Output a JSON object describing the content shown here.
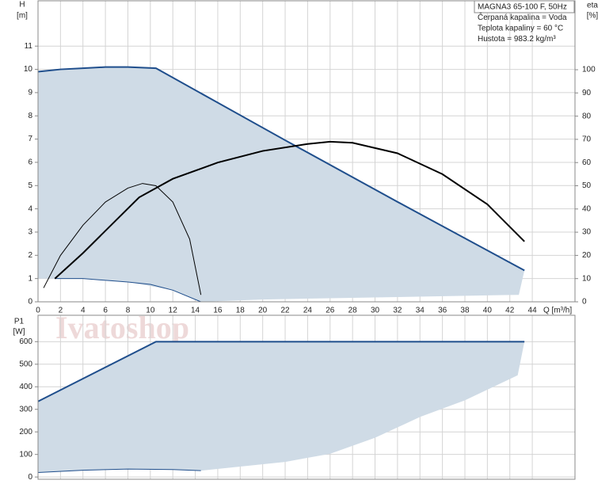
{
  "watermark": "Ivatoshop",
  "chart_data": [
    {
      "type": "line",
      "info": [
        "MAGNA3 65-100 F, 50Hz",
        "Čerpaná kapalina = Voda",
        "Teplota kapaliny = 60 °C",
        "Hustota = 983.2 kg/m³"
      ],
      "y_label": "H",
      "y_unit": "[m]",
      "y2_label": "eta",
      "y2_unit": "[%]",
      "x_label": "Q [m³/h]",
      "xlim": [
        0,
        47.8
      ],
      "xticks": [
        0,
        2,
        4,
        6,
        8,
        10,
        12,
        14,
        16,
        18,
        20,
        22,
        24,
        26,
        28,
        30,
        32,
        34,
        36,
        38,
        40,
        42,
        44
      ],
      "ylim": [
        0,
        12.95
      ],
      "yticks": [
        0,
        1,
        2,
        3,
        4,
        5,
        6,
        7,
        8,
        9,
        10,
        11
      ],
      "y2lim": [
        0,
        129.7
      ],
      "y2ticks": [
        0,
        10,
        20,
        30,
        40,
        50,
        60,
        70,
        80,
        90,
        100
      ],
      "grid": true,
      "region": {
        "color": "#cfdbe6",
        "x": [
          0,
          4,
          8,
          10.5,
          43.3,
          42.8,
          20,
          14.5,
          12,
          8,
          4,
          0
        ],
        "y": [
          9.9,
          10.05,
          10.1,
          10.05,
          1.35,
          0.3,
          0.1,
          0,
          0.5,
          0.85,
          1,
          1
        ]
      },
      "series": [
        {
          "color": "#1f4e8c",
          "width": 2,
          "x": [
            0,
            2,
            4,
            6,
            8,
            10.5,
            22,
            32,
            43.3
          ],
          "values": [
            9.9,
            10,
            10.05,
            10.1,
            10.1,
            10.05,
            6.95,
            4.3,
            1.35
          ]
        },
        {
          "color": "#1f4e8c",
          "width": 1,
          "x": [
            1.5,
            4,
            8,
            10,
            12,
            14.5
          ],
          "values": [
            1,
            1,
            0.85,
            0.75,
            0.5,
            0
          ]
        },
        {
          "color": "#000000",
          "width": 2,
          "axis": "y2",
          "x": [
            1.5,
            4,
            9,
            12,
            16,
            20,
            24,
            26,
            28,
            32,
            36,
            40,
            43.3
          ],
          "values": [
            10,
            21,
            45,
            53,
            60,
            65,
            68,
            69,
            68.5,
            64,
            55,
            42,
            26
          ]
        },
        {
          "color": "#000000",
          "width": 1,
          "axis": "y2",
          "x": [
            0.5,
            2,
            4,
            6,
            8,
            9.3,
            10.5,
            12,
            13.5,
            14.5
          ],
          "values": [
            6,
            20,
            33,
            43,
            49,
            51,
            50,
            43,
            27,
            3
          ]
        }
      ]
    },
    {
      "type": "line",
      "y_label": "P1",
      "y_unit": "[W]",
      "xlim": [
        0,
        47.8
      ],
      "ylim": [
        -10,
        717
      ],
      "yticks": [
        0,
        100,
        200,
        300,
        400,
        500,
        600
      ],
      "grid": true,
      "region": {
        "color": "#cfdbe6",
        "x": [
          0,
          10.5,
          43.3,
          42.7,
          38,
          34,
          30,
          26,
          22,
          14.5,
          12,
          8,
          4,
          0
        ],
        "y": [
          335,
          600,
          600,
          451,
          340,
          266,
          174,
          103,
          67,
          28,
          33,
          35,
          30,
          20
        ]
      },
      "series": [
        {
          "color": "#1f4e8c",
          "width": 2,
          "x": [
            0,
            10.5,
            43.3
          ],
          "values": [
            335,
            600,
            600
          ]
        },
        {
          "color": "#1f4e8c",
          "width": 1,
          "x": [
            0,
            4,
            8,
            12,
            14.5
          ],
          "values": [
            20,
            30,
            35,
            33,
            28
          ]
        }
      ]
    }
  ]
}
